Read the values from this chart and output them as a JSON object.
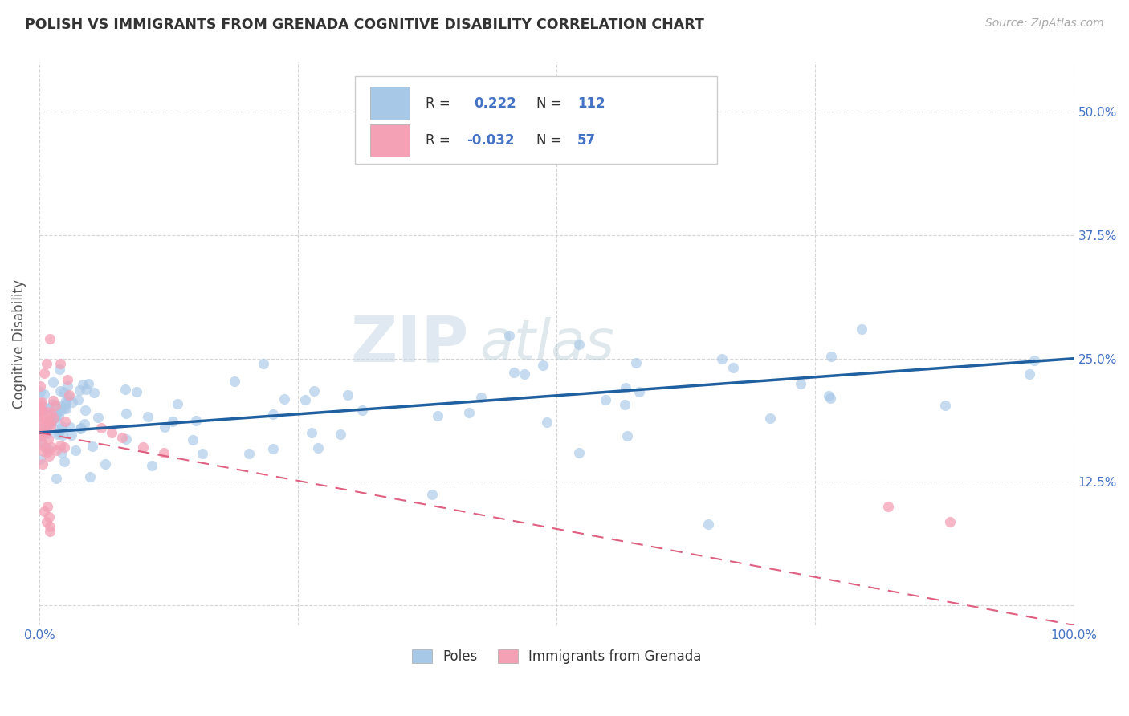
{
  "title": "POLISH VS IMMIGRANTS FROM GRENADA COGNITIVE DISABILITY CORRELATION CHART",
  "source": "Source: ZipAtlas.com",
  "ylabel": "Cognitive Disability",
  "xlim": [
    0.0,
    1.0
  ],
  "ylim": [
    -0.02,
    0.55
  ],
  "yticks": [
    0.0,
    0.125,
    0.25,
    0.375,
    0.5
  ],
  "ytick_labels": [
    "",
    "12.5%",
    "25.0%",
    "37.5%",
    "50.0%"
  ],
  "xticks": [
    0.0,
    0.25,
    0.5,
    0.75,
    1.0
  ],
  "xtick_labels": [
    "0.0%",
    "",
    "",
    "",
    "100.0%"
  ],
  "legend_label1": "Poles",
  "legend_label2": "Immigrants from Grenada",
  "blue_color": "#a8c8e8",
  "pink_color": "#f4a0b5",
  "blue_line_color": "#2060a0",
  "pink_line_color": "#e06080",
  "watermark_zip": "ZIP",
  "watermark_atlas": "atlas",
  "title_color": "#333333",
  "axis_label_color": "#555555",
  "tick_color": "#4472c4",
  "background_color": "#ffffff",
  "grid_color": "#cccccc",
  "blue_trend_start_y": 0.175,
  "blue_trend_end_y": 0.25,
  "pink_trend_start_y": 0.175,
  "pink_trend_end_y": -0.02
}
